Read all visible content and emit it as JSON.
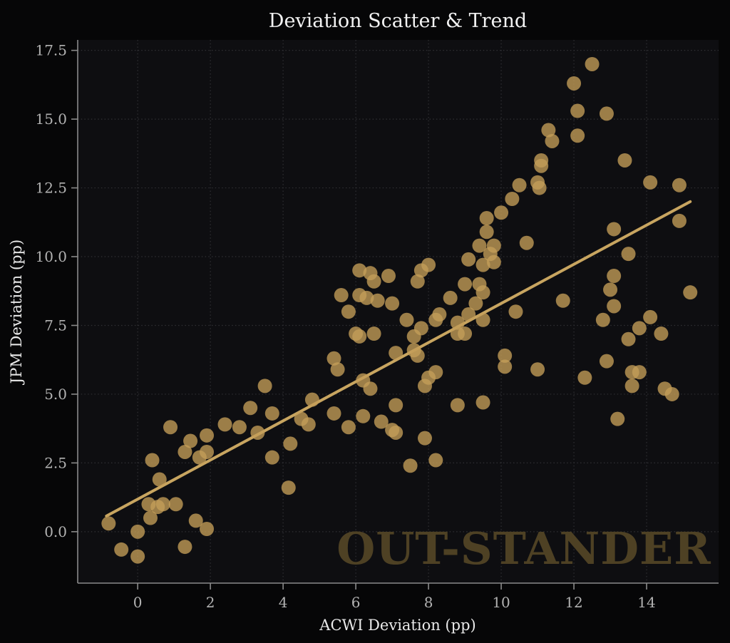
{
  "figure": {
    "background": "#060607",
    "axes_background": "#0e0e11"
  },
  "chart_data": {
    "type": "scatter",
    "title": "Deviation Scatter & Trend",
    "xlabel": "ACWI Deviation (pp)",
    "ylabel": "JPM Deviation (pp)",
    "watermark": "OUT-STANDER",
    "xlim": [
      -1.65,
      15.98
    ],
    "ylim": [
      -1.87,
      17.88
    ],
    "xticks": [
      0,
      2,
      4,
      6,
      8,
      10,
      12,
      14
    ],
    "xtick_labels": [
      "0",
      "2",
      "4",
      "6",
      "8",
      "10",
      "12",
      "14"
    ],
    "yticks": [
      0.0,
      2.5,
      5.0,
      7.5,
      10.0,
      12.5,
      15.0,
      17.5
    ],
    "ytick_labels": [
      "0.0",
      "2.5",
      "5.0",
      "7.5",
      "10.0",
      "12.5",
      "15.0",
      "17.5"
    ],
    "grid": true,
    "grid_style": "dotted",
    "legend": false,
    "colors": {
      "marker": "#c49e58",
      "trend": "#c8a560",
      "grid": "#303034",
      "spine": "#8a8a8a",
      "tick_label": "#b2b2b2",
      "title": "#f2f2f2",
      "watermark": "#4e4124"
    },
    "series": [
      {
        "name": "deviation-scatter",
        "kind": "scatter",
        "marker_radius": 10,
        "marker_opacity": 0.78,
        "points": [
          [
            -0.8,
            0.3
          ],
          [
            -0.45,
            -0.65
          ],
          [
            0.0,
            -0.9
          ],
          [
            0.0,
            0.0
          ],
          [
            0.3,
            1.0
          ],
          [
            0.55,
            0.9
          ],
          [
            0.7,
            1.0
          ],
          [
            1.05,
            1.0
          ],
          [
            0.35,
            0.5
          ],
          [
            1.6,
            0.4
          ],
          [
            1.9,
            0.1
          ],
          [
            1.3,
            -0.55
          ],
          [
            0.4,
            2.6
          ],
          [
            0.6,
            1.9
          ],
          [
            0.9,
            3.8
          ],
          [
            1.3,
            2.9
          ],
          [
            1.45,
            3.3
          ],
          [
            1.7,
            2.7
          ],
          [
            1.9,
            2.9
          ],
          [
            1.9,
            3.5
          ],
          [
            2.4,
            3.9
          ],
          [
            2.8,
            3.8
          ],
          [
            3.3,
            3.6
          ],
          [
            3.1,
            4.5
          ],
          [
            3.7,
            4.3
          ],
          [
            3.5,
            5.3
          ],
          [
            3.7,
            2.7
          ],
          [
            4.15,
            1.6
          ],
          [
            4.2,
            3.2
          ],
          [
            4.5,
            4.1
          ],
          [
            4.7,
            3.9
          ],
          [
            4.8,
            4.8
          ],
          [
            5.4,
            4.3
          ],
          [
            5.8,
            3.8
          ],
          [
            5.4,
            6.3
          ],
          [
            5.5,
            5.9
          ],
          [
            5.6,
            8.6
          ],
          [
            5.8,
            8.0
          ],
          [
            6.2,
            4.2
          ],
          [
            6.2,
            5.5
          ],
          [
            6.4,
            5.2
          ],
          [
            6.7,
            4.0
          ],
          [
            7.0,
            3.7
          ],
          [
            7.1,
            3.6
          ],
          [
            7.9,
            3.4
          ],
          [
            7.5,
            2.4
          ],
          [
            6.0,
            7.2
          ],
          [
            6.1,
            7.1
          ],
          [
            6.5,
            7.2
          ],
          [
            6.1,
            8.6
          ],
          [
            6.3,
            8.5
          ],
          [
            6.6,
            8.4
          ],
          [
            7.0,
            8.3
          ],
          [
            6.1,
            9.5
          ],
          [
            6.4,
            9.4
          ],
          [
            6.5,
            9.1
          ],
          [
            6.9,
            9.3
          ],
          [
            7.1,
            6.5
          ],
          [
            7.6,
            6.6
          ],
          [
            7.7,
            6.4
          ],
          [
            7.1,
            4.6
          ],
          [
            7.4,
            7.7
          ],
          [
            7.6,
            7.1
          ],
          [
            7.8,
            7.4
          ],
          [
            7.7,
            9.1
          ],
          [
            7.8,
            9.5
          ],
          [
            8.0,
            9.7
          ],
          [
            8.0,
            5.6
          ],
          [
            8.2,
            5.8
          ],
          [
            7.9,
            5.3
          ],
          [
            8.2,
            2.6
          ],
          [
            8.2,
            7.7
          ],
          [
            8.3,
            7.9
          ],
          [
            8.6,
            8.5
          ],
          [
            8.8,
            7.6
          ],
          [
            8.8,
            7.2
          ],
          [
            8.8,
            4.6
          ],
          [
            9.0,
            7.2
          ],
          [
            9.0,
            9.0
          ],
          [
            9.1,
            7.9
          ],
          [
            9.1,
            9.9
          ],
          [
            9.3,
            8.3
          ],
          [
            9.4,
            9.0
          ],
          [
            9.4,
            10.4
          ],
          [
            9.5,
            8.7
          ],
          [
            9.5,
            7.7
          ],
          [
            9.5,
            4.7
          ],
          [
            9.5,
            9.7
          ],
          [
            9.6,
            10.9
          ],
          [
            9.6,
            11.4
          ],
          [
            9.7,
            10.1
          ],
          [
            9.8,
            9.8
          ],
          [
            9.8,
            10.4
          ],
          [
            10.0,
            11.6
          ],
          [
            10.1,
            6.4
          ],
          [
            10.1,
            6.0
          ],
          [
            10.3,
            12.1
          ],
          [
            10.4,
            8.0
          ],
          [
            10.5,
            12.6
          ],
          [
            10.7,
            10.5
          ],
          [
            11.0,
            12.7
          ],
          [
            11.05,
            12.5
          ],
          [
            11.0,
            5.9
          ],
          [
            11.1,
            13.5
          ],
          [
            11.1,
            13.3
          ],
          [
            11.3,
            14.6
          ],
          [
            11.4,
            14.2
          ],
          [
            11.7,
            8.4
          ],
          [
            12.0,
            16.3
          ],
          [
            12.1,
            15.3
          ],
          [
            12.1,
            14.4
          ],
          [
            12.3,
            5.6
          ],
          [
            12.5,
            17.0
          ],
          [
            12.9,
            15.2
          ],
          [
            12.8,
            7.7
          ],
          [
            12.9,
            6.2
          ],
          [
            13.0,
            8.8
          ],
          [
            13.1,
            11.0
          ],
          [
            13.1,
            9.3
          ],
          [
            13.1,
            8.2
          ],
          [
            13.2,
            4.1
          ],
          [
            13.4,
            13.5
          ],
          [
            13.5,
            10.1
          ],
          [
            13.5,
            7.0
          ],
          [
            13.6,
            5.8
          ],
          [
            13.8,
            5.8
          ],
          [
            13.6,
            5.3
          ],
          [
            13.8,
            7.4
          ],
          [
            14.1,
            12.7
          ],
          [
            14.1,
            7.8
          ],
          [
            14.4,
            7.2
          ],
          [
            14.5,
            5.2
          ],
          [
            14.7,
            5.0
          ],
          [
            14.9,
            12.6
          ],
          [
            14.9,
            11.3
          ],
          [
            15.2,
            8.7
          ]
        ]
      },
      {
        "name": "trend-line",
        "kind": "line",
        "width": 4,
        "points": [
          [
            -0.86,
            0.57
          ],
          [
            15.2,
            12.0
          ]
        ]
      }
    ]
  }
}
